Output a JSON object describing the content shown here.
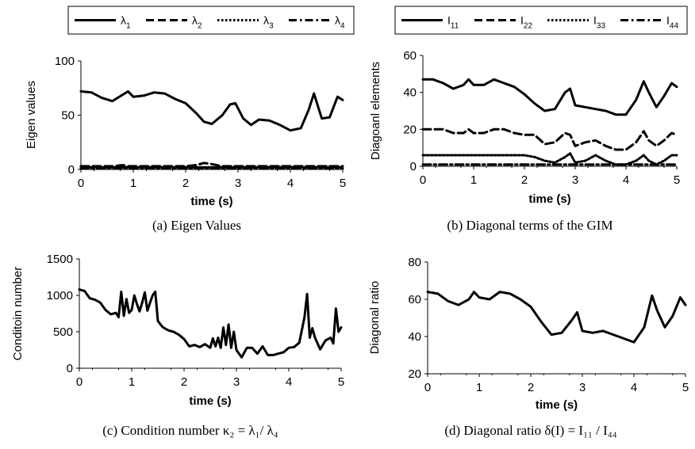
{
  "chart_data": [
    {
      "type": "line",
      "panel": "a",
      "caption": "(a) Eigen Values",
      "xlabel": "time (s)",
      "ylabel": "Eigen values",
      "xlim": [
        0,
        5
      ],
      "ylim": [
        0,
        100
      ],
      "xticks": [
        "0",
        "1",
        "2",
        "3",
        "4",
        "5"
      ],
      "yticks": [
        "0",
        "50",
        "100"
      ],
      "legend": {
        "placement": "top",
        "entries": [
          {
            "main": "λ",
            "sub": "1",
            "style": "solid"
          },
          {
            "main": "λ",
            "sub": "2",
            "style": "dashed"
          },
          {
            "main": "λ",
            "sub": "3",
            "style": "dotted"
          },
          {
            "main": "λ",
            "sub": "4",
            "style": "dashdot"
          }
        ]
      },
      "x": [
        0,
        0.2,
        0.4,
        0.6,
        0.8,
        0.9,
        1.0,
        1.2,
        1.4,
        1.6,
        1.8,
        2.0,
        2.2,
        2.35,
        2.5,
        2.7,
        2.85,
        2.95,
        3.1,
        3.25,
        3.4,
        3.6,
        3.8,
        4.0,
        4.2,
        4.35,
        4.45,
        4.6,
        4.75,
        4.9,
        5.0
      ],
      "series": [
        {
          "values": [
            72,
            71,
            66,
            63,
            69,
            72,
            67,
            68,
            71,
            70,
            65,
            61,
            52,
            44,
            42,
            50,
            60,
            61,
            47,
            41,
            46,
            45,
            41,
            36,
            38,
            55,
            70,
            47,
            48,
            67,
            64
          ]
        },
        {
          "values": [
            3,
            3,
            3,
            3,
            4,
            3,
            3,
            3,
            3,
            3,
            3,
            3,
            4,
            6,
            5,
            3,
            3,
            3,
            3,
            3,
            3,
            3,
            3,
            3,
            3,
            3,
            3,
            3,
            3,
            3,
            3
          ]
        },
        {
          "values": [
            2,
            2,
            2,
            2,
            2,
            2,
            2,
            2,
            2,
            2,
            2,
            2,
            2,
            2,
            2,
            2,
            2,
            2,
            2,
            2,
            2,
            2,
            2,
            2,
            2,
            2,
            2,
            2,
            2,
            2,
            2
          ]
        },
        {
          "values": [
            1,
            1,
            1,
            1,
            1,
            1,
            1,
            1,
            1,
            1,
            1,
            1,
            1,
            1,
            1,
            1,
            1,
            1,
            1,
            1,
            1,
            1,
            1,
            1,
            1,
            1,
            1,
            1,
            1,
            1,
            1
          ]
        }
      ]
    },
    {
      "type": "line",
      "panel": "b",
      "caption": "(b) Diagonal terms of the GIM",
      "xlabel": "time (s)",
      "ylabel": "Diagoanl elements",
      "xlim": [
        0,
        5
      ],
      "ylim": [
        0,
        60
      ],
      "xticks": [
        "0",
        "1",
        "2",
        "3",
        "4",
        "5"
      ],
      "yticks": [
        "0",
        "20",
        "40",
        "60"
      ],
      "legend": {
        "placement": "top",
        "entries": [
          {
            "main": "I",
            "sub": "11",
            "style": "solid"
          },
          {
            "main": "I",
            "sub": "22",
            "style": "dashed"
          },
          {
            "main": "I",
            "sub": "33",
            "style": "dotted"
          },
          {
            "main": "I",
            "sub": "44",
            "style": "dashdot"
          }
        ]
      },
      "x": [
        0,
        0.2,
        0.4,
        0.6,
        0.8,
        0.9,
        1.0,
        1.2,
        1.4,
        1.6,
        1.8,
        2.0,
        2.2,
        2.4,
        2.6,
        2.8,
        2.9,
        3.0,
        3.2,
        3.4,
        3.6,
        3.8,
        4.0,
        4.2,
        4.35,
        4.45,
        4.6,
        4.75,
        4.9,
        5.0
      ],
      "series": [
        {
          "values": [
            47,
            47,
            45,
            42,
            44,
            47,
            44,
            44,
            47,
            45,
            43,
            39,
            34,
            30,
            31,
            40,
            42,
            33,
            32,
            31,
            30,
            28,
            28,
            36,
            46,
            40,
            32,
            38,
            45,
            43
          ]
        },
        {
          "values": [
            20,
            20,
            20,
            18,
            18,
            20,
            18,
            18,
            20,
            20,
            18,
            17,
            17,
            12,
            13,
            18,
            17,
            11,
            13,
            14,
            11,
            9,
            9,
            13,
            19,
            14,
            11,
            14,
            18,
            17
          ]
        },
        {
          "values": [
            6,
            6,
            6,
            6,
            6,
            6,
            6,
            6,
            6,
            6,
            6,
            6,
            5,
            3,
            2,
            5,
            7,
            2,
            3,
            6,
            3,
            1,
            1,
            3,
            6,
            3,
            1,
            3,
            6,
            6
          ]
        },
        {
          "values": [
            1,
            1,
            1,
            1,
            1,
            1,
            1,
            1,
            1,
            1,
            1,
            1,
            1,
            1,
            1,
            1,
            1,
            1,
            1,
            1,
            1,
            1,
            1,
            1,
            1,
            1,
            1,
            1,
            1,
            1
          ]
        }
      ]
    },
    {
      "type": "line",
      "panel": "c",
      "caption": "(c) Condition number κ₂ = λ₁/ λ₄",
      "xlabel": "time (s)",
      "ylabel": "Conditoin number",
      "xlim": [
        0,
        5
      ],
      "ylim": [
        0,
        1500
      ],
      "xticks": [
        "0",
        "1",
        "2",
        "3",
        "4",
        "5"
      ],
      "yticks": [
        "0",
        "500",
        "1000",
        "1500"
      ],
      "x": [
        0,
        0.1,
        0.2,
        0.3,
        0.4,
        0.5,
        0.6,
        0.7,
        0.75,
        0.8,
        0.85,
        0.9,
        0.95,
        1.0,
        1.05,
        1.1,
        1.15,
        1.2,
        1.25,
        1.3,
        1.35,
        1.4,
        1.45,
        1.5,
        1.55,
        1.6,
        1.7,
        1.8,
        1.9,
        2.0,
        2.1,
        2.2,
        2.3,
        2.4,
        2.5,
        2.55,
        2.6,
        2.65,
        2.7,
        2.75,
        2.8,
        2.85,
        2.9,
        2.95,
        3.0,
        3.05,
        3.1,
        3.2,
        3.3,
        3.4,
        3.5,
        3.6,
        3.7,
        3.8,
        3.9,
        4.0,
        4.1,
        4.2,
        4.3,
        4.35,
        4.4,
        4.45,
        4.5,
        4.6,
        4.7,
        4.8,
        4.85,
        4.9,
        4.95,
        5.0
      ],
      "series": [
        {
          "values": [
            1080,
            1060,
            960,
            940,
            900,
            800,
            740,
            760,
            700,
            1050,
            720,
            950,
            760,
            800,
            1000,
            880,
            780,
            900,
            1040,
            790,
            900,
            1000,
            1050,
            650,
            600,
            560,
            520,
            500,
            460,
            400,
            300,
            320,
            290,
            330,
            280,
            410,
            300,
            420,
            280,
            560,
            320,
            600,
            280,
            500,
            250,
            200,
            150,
            280,
            280,
            200,
            300,
            180,
            180,
            200,
            220,
            280,
            290,
            350,
            700,
            1020,
            420,
            550,
            420,
            260,
            380,
            420,
            340,
            820,
            500,
            560
          ]
        }
      ]
    },
    {
      "type": "line",
      "panel": "d",
      "caption": "(d) Diagonal ratio δ(I) = I₁₁ / I₄₄",
      "xlabel": "time (s)",
      "ylabel": "Diagonal ratio",
      "xlim": [
        0,
        5
      ],
      "ylim": [
        20,
        80
      ],
      "xticks": [
        "0",
        "1",
        "2",
        "3",
        "4",
        "5"
      ],
      "yticks": [
        "20",
        "40",
        "60",
        "80"
      ],
      "x": [
        0,
        0.2,
        0.4,
        0.6,
        0.8,
        0.9,
        1.0,
        1.2,
        1.4,
        1.6,
        1.8,
        2.0,
        2.2,
        2.4,
        2.6,
        2.8,
        2.9,
        3.0,
        3.2,
        3.4,
        3.6,
        3.8,
        4.0,
        4.2,
        4.35,
        4.45,
        4.6,
        4.75,
        4.9,
        5.0
      ],
      "series": [
        {
          "values": [
            64,
            63,
            59,
            57,
            60,
            64,
            61,
            60,
            64,
            63,
            60,
            56,
            48,
            41,
            42,
            49,
            53,
            43,
            42,
            43,
            41,
            39,
            37,
            45,
            62,
            54,
            45,
            51,
            61,
            57
          ]
        }
      ]
    }
  ]
}
